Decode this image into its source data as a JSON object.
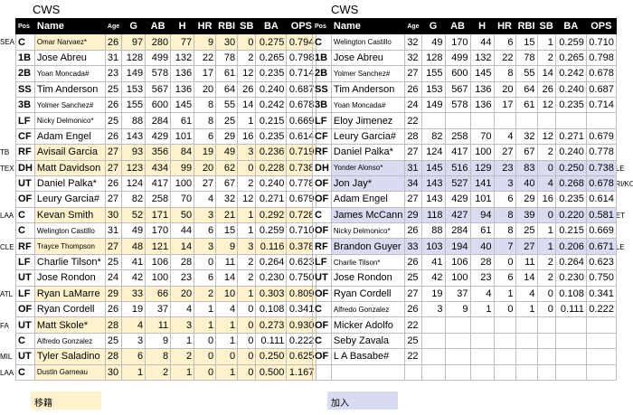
{
  "left_team": "CWS",
  "right_team": "CWS",
  "headers": {
    "pos": "Pos",
    "name": "Name",
    "age": "Age",
    "g": "G",
    "ab": "AB",
    "h": "H",
    "hr": "HR",
    "rbi": "RBI",
    "sb": "SB",
    "ba": "BA",
    "ops": "OPS"
  },
  "left_side_labels": [
    "SEA",
    "",
    "",
    "",
    "",
    "",
    "",
    "TB",
    "TEX",
    "",
    "",
    "LAA",
    "",
    "CLE",
    "",
    "",
    "ATL",
    "",
    "FA",
    "",
    "MIL",
    "LAA"
  ],
  "right_side_labels": [
    "",
    "",
    "",
    "",
    "",
    "",
    "",
    "",
    "CLE",
    "ARI/KC",
    "",
    "DET",
    "",
    "CLE",
    "",
    "",
    "",
    "",
    "",
    "",
    "",
    ""
  ],
  "left_rows": [
    {
      "pos": "C",
      "name": "Omar Narvaez*",
      "age": "26",
      "g": "97",
      "ab": "280",
      "h": "77",
      "hr": "9",
      "rbi": "30",
      "sb": "0",
      "ba": "0.275",
      "ops": "0.794",
      "hl": "yel",
      "small": true
    },
    {
      "pos": "1B",
      "name": "Jose Abreu",
      "age": "31",
      "g": "128",
      "ab": "499",
      "h": "132",
      "hr": "22",
      "rbi": "78",
      "sb": "2",
      "ba": "0.265",
      "ops": "0.798",
      "hl": "",
      "small": false
    },
    {
      "pos": "2B",
      "name": "Yoan Moncada#",
      "age": "23",
      "g": "149",
      "ab": "578",
      "h": "136",
      "hr": "17",
      "rbi": "61",
      "sb": "12",
      "ba": "0.235",
      "ops": "0.714",
      "hl": "",
      "small": true
    },
    {
      "pos": "SS",
      "name": "Tim Anderson",
      "age": "25",
      "g": "153",
      "ab": "567",
      "h": "136",
      "hr": "20",
      "rbi": "64",
      "sb": "26",
      "ba": "0.240",
      "ops": "0.687",
      "hl": "",
      "small": false
    },
    {
      "pos": "3B",
      "name": "Yolmer Sanchez#",
      "age": "26",
      "g": "155",
      "ab": "600",
      "h": "145",
      "hr": "8",
      "rbi": "55",
      "sb": "14",
      "ba": "0.242",
      "ops": "0.678",
      "hl": "",
      "small": true
    },
    {
      "pos": "LF",
      "name": "Nicky Delmonico*",
      "age": "25",
      "g": "88",
      "ab": "284",
      "h": "61",
      "hr": "8",
      "rbi": "25",
      "sb": "1",
      "ba": "0.215",
      "ops": "0.669",
      "hl": "",
      "small": true
    },
    {
      "pos": "CF",
      "name": "Adam Engel",
      "age": "26",
      "g": "143",
      "ab": "429",
      "h": "101",
      "hr": "6",
      "rbi": "29",
      "sb": "16",
      "ba": "0.235",
      "ops": "0.614",
      "hl": "",
      "small": false
    },
    {
      "pos": "RF",
      "name": "Avisail Garcia",
      "age": "27",
      "g": "93",
      "ab": "356",
      "h": "84",
      "hr": "19",
      "rbi": "49",
      "sb": "3",
      "ba": "0.236",
      "ops": "0.719",
      "hl": "yel",
      "small": false
    },
    {
      "pos": "DH",
      "name": "Matt Davidson",
      "age": "27",
      "g": "123",
      "ab": "434",
      "h": "99",
      "hr": "20",
      "rbi": "62",
      "sb": "0",
      "ba": "0.228",
      "ops": "0.738",
      "hl": "yel",
      "small": false
    },
    {
      "pos": "UT",
      "name": "Daniel Palka*",
      "age": "26",
      "g": "124",
      "ab": "417",
      "h": "100",
      "hr": "27",
      "rbi": "67",
      "sb": "2",
      "ba": "0.240",
      "ops": "0.778",
      "hl": "",
      "small": false
    },
    {
      "pos": "OF",
      "name": "Leury Garcia#",
      "age": "27",
      "g": "82",
      "ab": "258",
      "h": "70",
      "hr": "4",
      "rbi": "32",
      "sb": "12",
      "ba": "0.271",
      "ops": "0.679",
      "hl": "",
      "small": false
    },
    {
      "pos": "C",
      "name": "Kevan Smith",
      "age": "30",
      "g": "52",
      "ab": "171",
      "h": "50",
      "hr": "3",
      "rbi": "21",
      "sb": "1",
      "ba": "0.292",
      "ops": "0.728",
      "hl": "yel",
      "small": false
    },
    {
      "pos": "C",
      "name": "Welington Castillo",
      "age": "31",
      "g": "49",
      "ab": "170",
      "h": "44",
      "hr": "6",
      "rbi": "15",
      "sb": "1",
      "ba": "0.259",
      "ops": "0.710",
      "hl": "",
      "small": true
    },
    {
      "pos": "RF",
      "name": "Trayce Thompson",
      "age": "27",
      "g": "48",
      "ab": "121",
      "h": "14",
      "hr": "3",
      "rbi": "9",
      "sb": "3",
      "ba": "0.116",
      "ops": "0.378",
      "hl": "yel",
      "small": true
    },
    {
      "pos": "LF",
      "name": "Charlie Tilson*",
      "age": "25",
      "g": "41",
      "ab": "106",
      "h": "28",
      "hr": "0",
      "rbi": "11",
      "sb": "2",
      "ba": "0.264",
      "ops": "0.623",
      "hl": "",
      "small": false
    },
    {
      "pos": "UT",
      "name": "Jose Rondon",
      "age": "24",
      "g": "42",
      "ab": "100",
      "h": "23",
      "hr": "6",
      "rbi": "14",
      "sb": "2",
      "ba": "0.230",
      "ops": "0.750",
      "hl": "",
      "small": false
    },
    {
      "pos": "LF",
      "name": "Ryan LaMarre",
      "age": "29",
      "g": "33",
      "ab": "66",
      "h": "20",
      "hr": "2",
      "rbi": "10",
      "sb": "1",
      "ba": "0.303",
      "ops": "0.809",
      "hl": "yel",
      "small": false
    },
    {
      "pos": "OF",
      "name": "Ryan Cordell",
      "age": "26",
      "g": "19",
      "ab": "37",
      "h": "4",
      "hr": "1",
      "rbi": "4",
      "sb": "0",
      "ba": "0.108",
      "ops": "0.341",
      "hl": "",
      "small": false
    },
    {
      "pos": "UT",
      "name": "Matt Skole*",
      "age": "28",
      "g": "4",
      "ab": "11",
      "h": "3",
      "hr": "1",
      "rbi": "1",
      "sb": "0",
      "ba": "0.273",
      "ops": "0.930",
      "hl": "yel",
      "small": false
    },
    {
      "pos": "C",
      "name": "Alfredo Gonzalez",
      "age": "25",
      "g": "3",
      "ab": "9",
      "h": "1",
      "hr": "0",
      "rbi": "1",
      "sb": "0",
      "ba": "0.111",
      "ops": "0.222",
      "hl": "",
      "small": true
    },
    {
      "pos": "UT",
      "name": "Tyler Saladino",
      "age": "28",
      "g": "6",
      "ab": "8",
      "h": "2",
      "hr": "0",
      "rbi": "0",
      "sb": "0",
      "ba": "0.250",
      "ops": "0.625",
      "hl": "yel",
      "small": false
    },
    {
      "pos": "C",
      "name": "Dustin Garneau",
      "age": "30",
      "g": "1",
      "ab": "2",
      "h": "1",
      "hr": "0",
      "rbi": "1",
      "sb": "0",
      "ba": "0.500",
      "ops": "1.167",
      "hl": "yel",
      "small": true
    }
  ],
  "right_rows": [
    {
      "pos": "C",
      "name": "Welington Castillo",
      "age": "32",
      "g": "49",
      "ab": "170",
      "h": "44",
      "hr": "6",
      "rbi": "15",
      "sb": "1",
      "ba": "0.259",
      "ops": "0.710",
      "hl": "",
      "small": true
    },
    {
      "pos": "1B",
      "name": "Jose Abreu",
      "age": "32",
      "g": "128",
      "ab": "499",
      "h": "132",
      "hr": "22",
      "rbi": "78",
      "sb": "2",
      "ba": "0.265",
      "ops": "0.798",
      "hl": "",
      "small": false
    },
    {
      "pos": "2B",
      "name": "Yolmer Sanchez#",
      "age": "27",
      "g": "155",
      "ab": "600",
      "h": "145",
      "hr": "8",
      "rbi": "55",
      "sb": "14",
      "ba": "0.242",
      "ops": "0.678",
      "hl": "",
      "small": true
    },
    {
      "pos": "SS",
      "name": "Tim Anderson",
      "age": "26",
      "g": "153",
      "ab": "567",
      "h": "136",
      "hr": "20",
      "rbi": "64",
      "sb": "26",
      "ba": "0.240",
      "ops": "0.687",
      "hl": "",
      "small": false
    },
    {
      "pos": "3B",
      "name": "Yoan Moncada#",
      "age": "24",
      "g": "149",
      "ab": "578",
      "h": "136",
      "hr": "17",
      "rbi": "61",
      "sb": "12",
      "ba": "0.235",
      "ops": "0.714",
      "hl": "",
      "small": true
    },
    {
      "pos": "LF",
      "name": "Eloy Jimenez",
      "age": "22",
      "g": "",
      "ab": "",
      "h": "",
      "hr": "",
      "rbi": "",
      "sb": "",
      "ba": "",
      "ops": "",
      "hl": "",
      "small": false
    },
    {
      "pos": "CF",
      "name": "Leury Garcia#",
      "age": "28",
      "g": "82",
      "ab": "258",
      "h": "70",
      "hr": "4",
      "rbi": "32",
      "sb": "12",
      "ba": "0.271",
      "ops": "0.679",
      "hl": "",
      "small": false
    },
    {
      "pos": "RF",
      "name": "Daniel Palka*",
      "age": "27",
      "g": "124",
      "ab": "417",
      "h": "100",
      "hr": "27",
      "rbi": "67",
      "sb": "2",
      "ba": "0.240",
      "ops": "0.778",
      "hl": "",
      "small": false
    },
    {
      "pos": "DH",
      "name": "Yonder Alonso*",
      "age": "31",
      "g": "145",
      "ab": "516",
      "h": "129",
      "hr": "23",
      "rbi": "83",
      "sb": "0",
      "ba": "0.250",
      "ops": "0.738",
      "hl": "blu",
      "small": true
    },
    {
      "pos": "OF",
      "name": "Jon Jay*",
      "age": "34",
      "g": "143",
      "ab": "527",
      "h": "141",
      "hr": "3",
      "rbi": "40",
      "sb": "4",
      "ba": "0.268",
      "ops": "0.678",
      "hl": "blu",
      "small": false
    },
    {
      "pos": "OF",
      "name": "Adam Engel",
      "age": "27",
      "g": "143",
      "ab": "429",
      "h": "101",
      "hr": "6",
      "rbi": "29",
      "sb": "16",
      "ba": "0.235",
      "ops": "0.614",
      "hl": "",
      "small": false
    },
    {
      "pos": "C",
      "name": "James McCann",
      "age": "29",
      "g": "118",
      "ab": "427",
      "h": "94",
      "hr": "8",
      "rbi": "39",
      "sb": "0",
      "ba": "0.220",
      "ops": "0.581",
      "hl": "blu",
      "small": false
    },
    {
      "pos": "OF",
      "name": "Nicky Delmonico*",
      "age": "26",
      "g": "88",
      "ab": "284",
      "h": "61",
      "hr": "8",
      "rbi": "25",
      "sb": "1",
      "ba": "0.215",
      "ops": "0.669",
      "hl": "",
      "small": true
    },
    {
      "pos": "RF",
      "name": "Brandon Guyer",
      "age": "33",
      "g": "103",
      "ab": "194",
      "h": "40",
      "hr": "7",
      "rbi": "27",
      "sb": "1",
      "ba": "0.206",
      "ops": "0.671",
      "hl": "blu",
      "small": false
    },
    {
      "pos": "LF",
      "name": "Charlie Tilson*",
      "age": "26",
      "g": "41",
      "ab": "106",
      "h": "28",
      "hr": "0",
      "rbi": "11",
      "sb": "2",
      "ba": "0.264",
      "ops": "0.623",
      "hl": "",
      "small": true
    },
    {
      "pos": "UT",
      "name": "Jose Rondon",
      "age": "25",
      "g": "42",
      "ab": "100",
      "h": "23",
      "hr": "6",
      "rbi": "14",
      "sb": "2",
      "ba": "0.230",
      "ops": "0.750",
      "hl": "",
      "small": false
    },
    {
      "pos": "OF",
      "name": "Ryan Cordell",
      "age": "27",
      "g": "19",
      "ab": "37",
      "h": "4",
      "hr": "1",
      "rbi": "4",
      "sb": "0",
      "ba": "0.108",
      "ops": "0.341",
      "hl": "",
      "small": false
    },
    {
      "pos": "C",
      "name": "Alfredo Gonzalez",
      "age": "26",
      "g": "3",
      "ab": "9",
      "h": "1",
      "hr": "0",
      "rbi": "1",
      "sb": "0",
      "ba": "0.111",
      "ops": "0.222",
      "hl": "",
      "small": true
    },
    {
      "pos": "OF",
      "name": "Micker Adolfo",
      "age": "22",
      "g": "",
      "ab": "",
      "h": "",
      "hr": "",
      "rbi": "",
      "sb": "",
      "ba": "",
      "ops": "",
      "hl": "",
      "small": false
    },
    {
      "pos": "C",
      "name": "Seby Zavala",
      "age": "25",
      "g": "",
      "ab": "",
      "h": "",
      "hr": "",
      "rbi": "",
      "sb": "",
      "ba": "",
      "ops": "",
      "hl": "",
      "small": false
    },
    {
      "pos": "OF",
      "name": "L A Basabe#",
      "age": "22",
      "g": "",
      "ab": "",
      "h": "",
      "hr": "",
      "rbi": "",
      "sb": "",
      "ba": "",
      "ops": "",
      "hl": "",
      "small": false
    },
    {
      "pos": "",
      "name": "",
      "age": "",
      "g": "",
      "ab": "",
      "h": "",
      "hr": "",
      "rbi": "",
      "sb": "",
      "ba": "",
      "ops": "",
      "hl": "",
      "small": false
    }
  ],
  "legend": {
    "left": "移籍",
    "right": "加入"
  },
  "colors": {
    "departed": "#fff2cc",
    "joined": "#d9dcf0",
    "header_bg": "#000000"
  }
}
